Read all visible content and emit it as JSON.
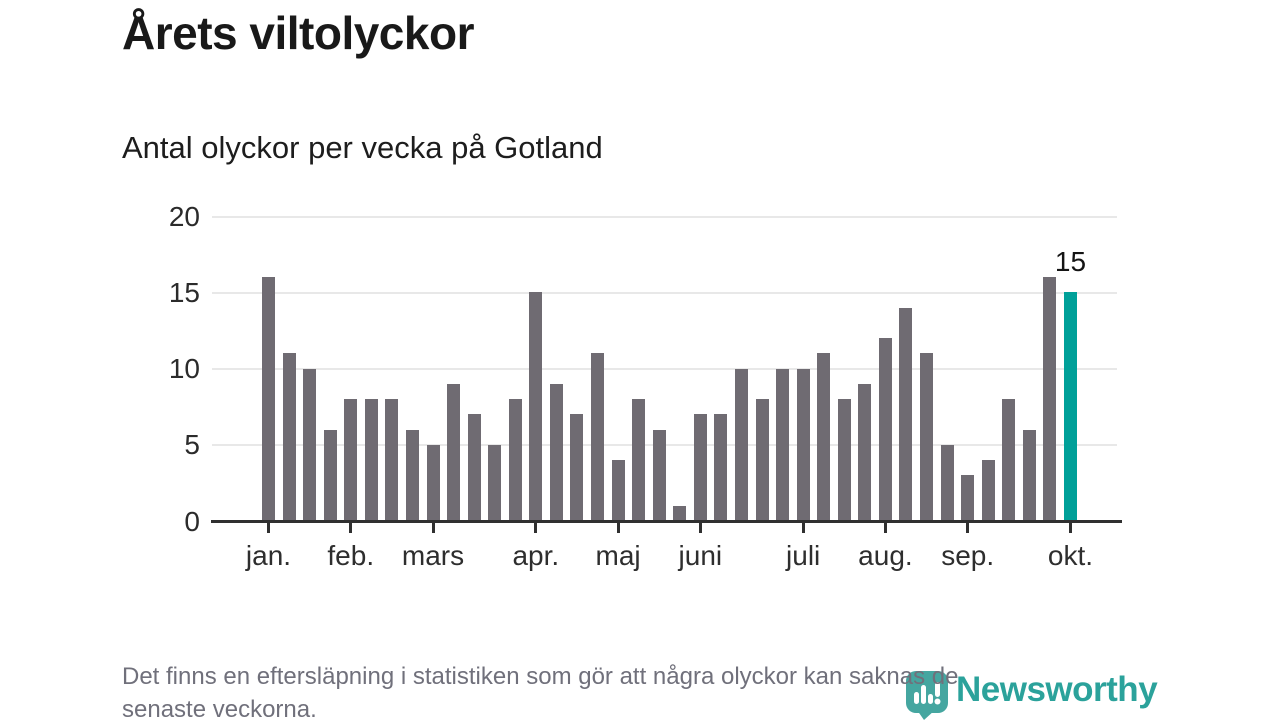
{
  "title": "Årets viltolyckor",
  "subtitle": "Antal olyckor per vecka på Gotland",
  "footnote": {
    "line1": "Det finns en eftersläpning i statistiken som gör att några olyckor kan saknas de",
    "line2": "senaste veckorna."
  },
  "logo": {
    "name": "Newsworthy",
    "icon": "newsworthy-speech-bubble-barchart-icon"
  },
  "colors": {
    "bar_gray": "#6f6b72",
    "bar_highlight_teal": "#00a099",
    "logo_teal": "#2ba29b",
    "logo_bubble_teal": "#45a6a0",
    "gridline": "#e8e8e8",
    "axis": "#303030",
    "title_text": "#191919",
    "footnote_text": "#70707b"
  },
  "chart_data": {
    "type": "bar",
    "title": "Årets viltolyckor",
    "subtitle": "Antal olyckor per vecka på Gotland",
    "x_unit": "vecka (week of year)",
    "values": [
      16,
      11,
      10,
      6,
      8,
      8,
      8,
      6,
      5,
      9,
      7,
      5,
      8,
      15,
      9,
      7,
      11,
      4,
      8,
      6,
      1,
      7,
      7,
      10,
      8,
      10,
      10,
      11,
      8,
      9,
      12,
      14,
      11,
      5,
      3,
      4,
      8,
      6,
      16,
      15
    ],
    "highlight_index": 39,
    "highlight_label": "15",
    "yticks": [
      0,
      5,
      10,
      15,
      20
    ],
    "ylim": [
      0,
      20
    ],
    "grid": "horizontal",
    "legend": "none",
    "month_ticks": [
      {
        "label": "jan.",
        "bar_index": 0
      },
      {
        "label": "feb.",
        "bar_index": 4
      },
      {
        "label": "mars",
        "bar_index": 8
      },
      {
        "label": "apr.",
        "bar_index": 13
      },
      {
        "label": "maj",
        "bar_index": 17
      },
      {
        "label": "juni",
        "bar_index": 21
      },
      {
        "label": "juli",
        "bar_index": 26
      },
      {
        "label": "aug.",
        "bar_index": 30
      },
      {
        "label": "sep.",
        "bar_index": 34
      },
      {
        "label": "okt.",
        "bar_index": 39
      }
    ]
  }
}
